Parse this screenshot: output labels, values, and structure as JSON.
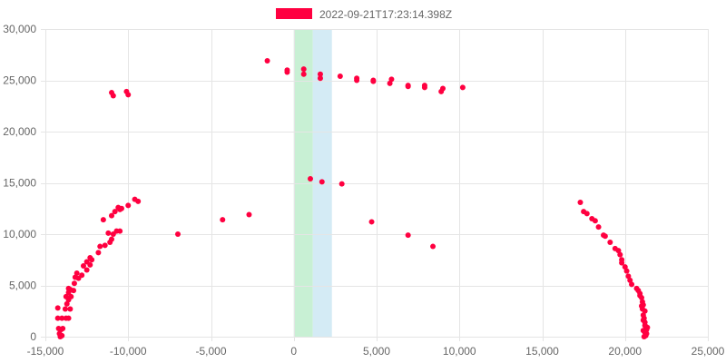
{
  "colors": {
    "series": "#ff0040",
    "grid": "#e5e5e5",
    "axis_text": "#666666",
    "band_green": "#c8f0d4",
    "band_blue": "#d4ebf5"
  },
  "chart_data": {
    "type": "scatter",
    "grid": true,
    "legend_placement": "top-center",
    "xlim": [
      -15000,
      25000
    ],
    "ylim": [
      0,
      30000
    ],
    "x_ticks": [
      -15000,
      -10000,
      -5000,
      0,
      5000,
      10000,
      15000,
      20000,
      25000
    ],
    "y_ticks": [
      0,
      5000,
      10000,
      15000,
      20000,
      25000,
      30000
    ],
    "x_tick_labels": [
      "-15,000",
      "-10,000",
      "-5,000",
      "0",
      "5,000",
      "10,000",
      "15,000",
      "20,000",
      "25,000"
    ],
    "y_tick_labels": [
      "0",
      "5,000",
      "10,000",
      "15,000",
      "20,000",
      "25,000",
      "30,000"
    ],
    "bands": [
      {
        "x0": 0,
        "x1": 1150,
        "color": "#c8f0d4"
      },
      {
        "x0": 1150,
        "x1": 2300,
        "color": "#d4ebf5"
      }
    ],
    "series": [
      {
        "name": "2022-09-21T17:23:14.398Z",
        "color": "#ff0040",
        "points": [
          [
            -14100,
            0
          ],
          [
            -14000,
            100
          ],
          [
            -14150,
            300
          ],
          [
            -14050,
            700
          ],
          [
            -14200,
            800
          ],
          [
            -13950,
            800
          ],
          [
            -14250,
            1800
          ],
          [
            -14000,
            1800
          ],
          [
            -13600,
            1800
          ],
          [
            -13750,
            1800
          ],
          [
            -14250,
            2800
          ],
          [
            -13800,
            2700
          ],
          [
            -13500,
            2700
          ],
          [
            -13700,
            3200
          ],
          [
            -13600,
            3600
          ],
          [
            -13750,
            3900
          ],
          [
            -13450,
            3900
          ],
          [
            -13600,
            4300
          ],
          [
            -13300,
            4500
          ],
          [
            -13500,
            4600
          ],
          [
            -13600,
            4700
          ],
          [
            -13250,
            5200
          ],
          [
            -13000,
            5700
          ],
          [
            -13200,
            5800
          ],
          [
            -13100,
            6200
          ],
          [
            -12800,
            6000
          ],
          [
            -12500,
            6500
          ],
          [
            -12700,
            6900
          ],
          [
            -12300,
            7000
          ],
          [
            -12500,
            7300
          ],
          [
            -12200,
            7500
          ],
          [
            -12300,
            7700
          ],
          [
            -11800,
            8200
          ],
          [
            -11700,
            8800
          ],
          [
            -11400,
            8900
          ],
          [
            -11100,
            9200
          ],
          [
            -11000,
            9500
          ],
          [
            -11200,
            10100
          ],
          [
            -10700,
            10300
          ],
          [
            -11000,
            11800
          ],
          [
            -10600,
            12600
          ],
          [
            -10800,
            12200
          ],
          [
            -10500,
            12400
          ],
          [
            -10000,
            12800
          ],
          [
            -9600,
            13400
          ],
          [
            -9400,
            13200
          ],
          [
            -11500,
            11400
          ],
          [
            -10900,
            10000
          ],
          [
            -10500,
            10300
          ],
          [
            -10400,
            12500
          ],
          [
            -11000,
            23800
          ],
          [
            -10900,
            23500
          ],
          [
            -10100,
            23900
          ],
          [
            -10000,
            23600
          ],
          [
            -7000,
            10000
          ],
          [
            -4300,
            11400
          ],
          [
            -2700,
            11900
          ],
          [
            -1600,
            26900
          ],
          [
            -400,
            25800
          ],
          [
            -400,
            26000
          ],
          [
            600,
            25600
          ],
          [
            600,
            26100
          ],
          [
            1600,
            25600
          ],
          [
            1600,
            25200
          ],
          [
            2800,
            25400
          ],
          [
            3800,
            25000
          ],
          [
            3800,
            25200
          ],
          [
            4800,
            25000
          ],
          [
            4800,
            24900
          ],
          [
            5800,
            24700
          ],
          [
            5900,
            25100
          ],
          [
            6900,
            24400
          ],
          [
            6900,
            24500
          ],
          [
            7900,
            24300
          ],
          [
            7900,
            24500
          ],
          [
            8900,
            23900
          ],
          [
            9000,
            24200
          ],
          [
            10200,
            24300
          ],
          [
            1000,
            15400
          ],
          [
            1700,
            15100
          ],
          [
            2900,
            14900
          ],
          [
            4700,
            11200
          ],
          [
            6900,
            9900
          ],
          [
            8400,
            8800
          ],
          [
            17300,
            13100
          ],
          [
            17500,
            12200
          ],
          [
            17700,
            12000
          ],
          [
            18000,
            11500
          ],
          [
            18200,
            11300
          ],
          [
            18400,
            10700
          ],
          [
            18700,
            9900
          ],
          [
            18800,
            9800
          ],
          [
            19100,
            9200
          ],
          [
            19400,
            8600
          ],
          [
            19600,
            8400
          ],
          [
            19800,
            7500
          ],
          [
            19700,
            8000
          ],
          [
            19800,
            7200
          ],
          [
            20000,
            6800
          ],
          [
            20100,
            6400
          ],
          [
            20200,
            5900
          ],
          [
            20300,
            5500
          ],
          [
            20400,
            5100
          ],
          [
            20700,
            4700
          ],
          [
            20800,
            4500
          ],
          [
            20900,
            4200
          ],
          [
            21000,
            3800
          ],
          [
            21050,
            3400
          ],
          [
            21100,
            3100
          ],
          [
            21050,
            2700
          ],
          [
            21200,
            2500
          ],
          [
            21100,
            2100
          ],
          [
            21150,
            1800
          ],
          [
            21200,
            1400
          ],
          [
            21250,
            1000
          ],
          [
            21300,
            700
          ],
          [
            21200,
            400
          ],
          [
            21250,
            200
          ],
          [
            21150,
            0
          ],
          [
            21300,
            300
          ],
          [
            21100,
            600
          ],
          [
            21200,
            1100
          ],
          [
            21000,
            3000
          ],
          [
            21350,
            900
          ],
          [
            20900,
            4000
          ],
          [
            21100,
            1600
          ],
          [
            21250,
            100
          ]
        ]
      }
    ]
  }
}
